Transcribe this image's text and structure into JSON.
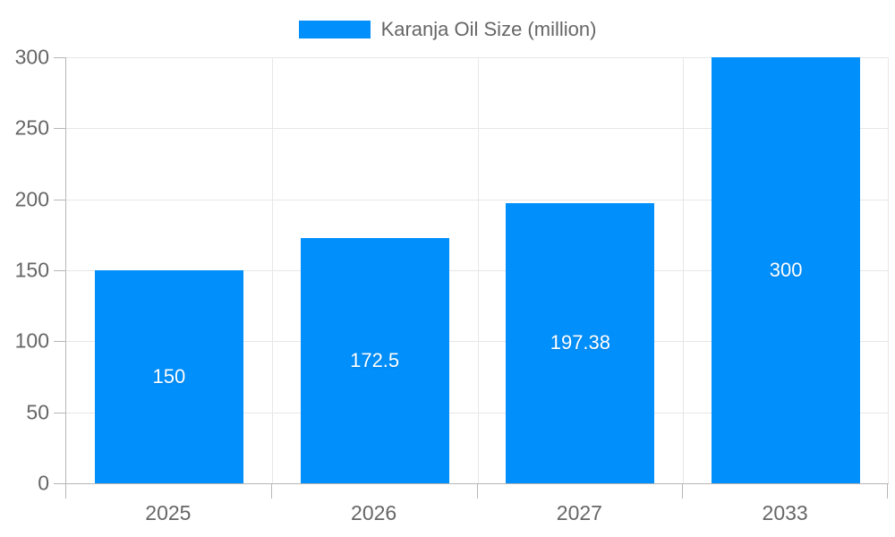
{
  "chart_data": {
    "type": "bar",
    "title": "",
    "categories": [
      "2025",
      "2026",
      "2027",
      "2033"
    ],
    "series": [
      {
        "name": "Karanja Oil Size (million)",
        "values": [
          150,
          172.5,
          197.38,
          300
        ]
      }
    ],
    "value_labels": [
      "150",
      "172.5",
      "197.38",
      "300"
    ],
    "xlabel": "",
    "ylabel": "",
    "ylim": [
      0,
      300
    ],
    "yticks": [
      0,
      50,
      100,
      150,
      200,
      250,
      300
    ],
    "grid": true,
    "legend": {
      "position": "top",
      "label": "Karanja Oil Size (million)",
      "swatch_shape": "rect"
    },
    "colors": {
      "bar": "#008ffb",
      "grid": "#e7e7e7",
      "axis": "#b6b6b6",
      "tick_label": "#666666",
      "legend_text": "#666666",
      "value_label": "#ffffff"
    }
  }
}
